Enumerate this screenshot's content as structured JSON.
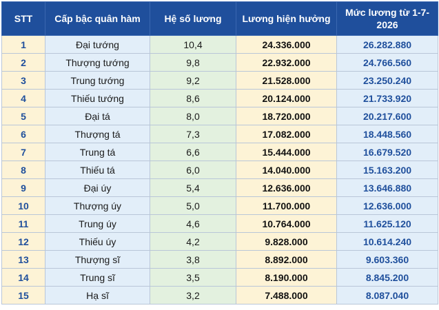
{
  "headers": {
    "stt": "STT",
    "rank": "Cấp bậc quân hàm",
    "coefficient": "Hệ số lương",
    "current_salary": "Lương hiện hưởng",
    "new_salary": "Mức lương từ 1-7-2026"
  },
  "rows": [
    {
      "stt": "1",
      "rank": "Đại tướng",
      "coefficient": "10,4",
      "current": "24.336.000",
      "new": "26.282.880"
    },
    {
      "stt": "2",
      "rank": "Thượng tướng",
      "coefficient": "9,8",
      "current": "22.932.000",
      "new": "24.766.560"
    },
    {
      "stt": "3",
      "rank": "Trung tướng",
      "coefficient": "9,2",
      "current": "21.528.000",
      "new": "23.250.240"
    },
    {
      "stt": "4",
      "rank": "Thiếu tướng",
      "coefficient": "8,6",
      "current": "20.124.000",
      "new": "21.733.920"
    },
    {
      "stt": "5",
      "rank": "Đại tá",
      "coefficient": "8,0",
      "current": "18.720.000",
      "new": "20.217.600"
    },
    {
      "stt": "6",
      "rank": "Thượng tá",
      "coefficient": "7,3",
      "current": "17.082.000",
      "new": "18.448.560"
    },
    {
      "stt": "7",
      "rank": "Trung tá",
      "coefficient": "6,6",
      "current": "15.444.000",
      "new": "16.679.520"
    },
    {
      "stt": "8",
      "rank": "Thiếu tá",
      "coefficient": "6,0",
      "current": "14.040.000",
      "new": "15.163.200"
    },
    {
      "stt": "9",
      "rank": "Đại úy",
      "coefficient": "5,4",
      "current": "12.636.000",
      "new": "13.646.880"
    },
    {
      "stt": "10",
      "rank": "Thượng úy",
      "coefficient": "5,0",
      "current": "11.700.000",
      "new": "12.636.000"
    },
    {
      "stt": "11",
      "rank": "Trung úy",
      "coefficient": "4,6",
      "current": "10.764.000",
      "new": "11.625.120"
    },
    {
      "stt": "12",
      "rank": "Thiếu úy",
      "coefficient": "4,2",
      "current": "9.828.000",
      "new": "10.614.240"
    },
    {
      "stt": "13",
      "rank": "Thượng sĩ",
      "coefficient": "3,8",
      "current": "8.892.000",
      "new": "9.603.360"
    },
    {
      "stt": "14",
      "rank": "Trung sĩ",
      "coefficient": "3,5",
      "current": "8.190.000",
      "new": "8.845.200"
    },
    {
      "stt": "15",
      "rank": "Hạ sĩ",
      "coefficient": "3,2",
      "current": "7.488.000",
      "new": "8.087.040"
    }
  ],
  "colors": {
    "header_bg": "#1f4f9c",
    "header_text": "#ffffff",
    "stt_bg": "#fdf3d6",
    "rank_bg": "#e2eef9",
    "coefficient_bg": "#e3f1df",
    "current_bg": "#fdf3d6",
    "new_bg": "#e2eef9",
    "accent_text": "#1f4f9c"
  }
}
